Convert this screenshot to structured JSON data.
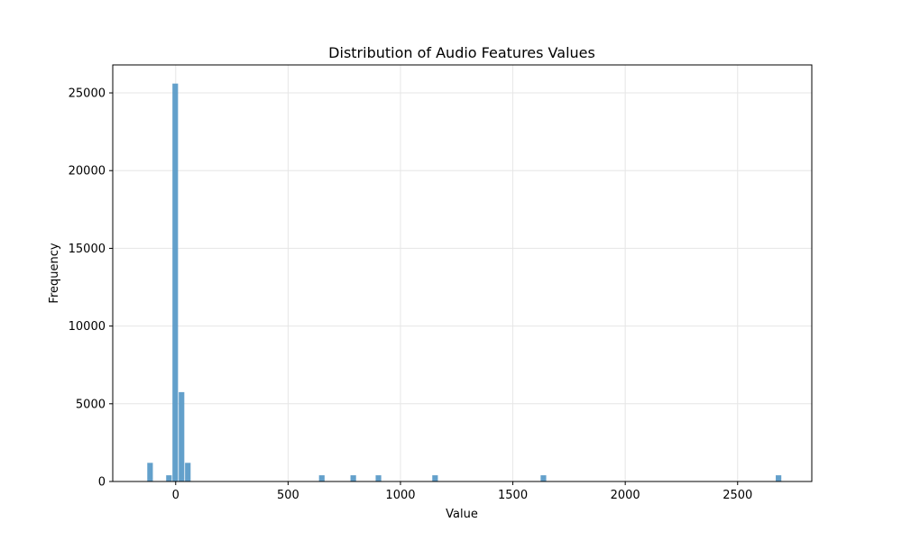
{
  "chart_data": {
    "type": "bar",
    "title": "Distribution of Audio Features Values",
    "xlabel": "Value",
    "ylabel": "Frequency",
    "xlim": [
      -280,
      2830
    ],
    "ylim": [
      0,
      26800
    ],
    "xticks": [
      0,
      500,
      1000,
      1500,
      2000,
      2500
    ],
    "yticks": [
      0,
      5000,
      10000,
      15000,
      20000,
      25000
    ],
    "grid": true,
    "bar_color": "#5b9bc8",
    "bin_width": 28,
    "bins": [
      {
        "x": -128,
        "count": 1200
      },
      {
        "x": -44,
        "count": 400
      },
      {
        "x": -16,
        "count": 25600
      },
      {
        "x": 12,
        "count": 5750
      },
      {
        "x": 40,
        "count": 1200
      },
      {
        "x": 636,
        "count": 400
      },
      {
        "x": 776,
        "count": 400
      },
      {
        "x": 888,
        "count": 400
      },
      {
        "x": 1140,
        "count": 400
      },
      {
        "x": 1622,
        "count": 400
      },
      {
        "x": 2668,
        "count": 400
      }
    ]
  }
}
